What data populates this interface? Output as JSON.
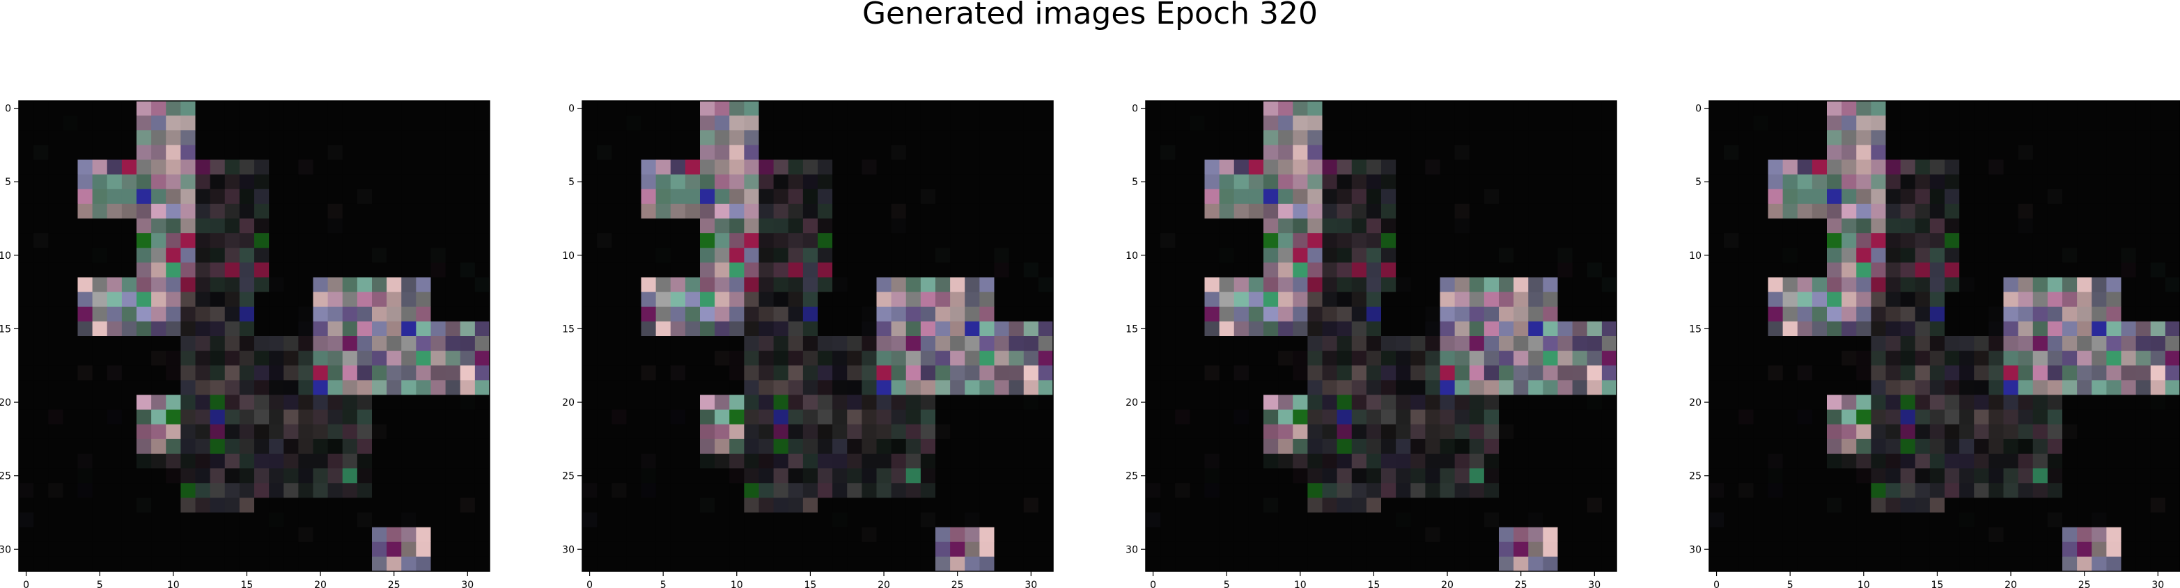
{
  "figure": {
    "title": "Generated images Epoch 320",
    "background": "#ffffff"
  },
  "chart_data": [
    {
      "type": "heatmap",
      "title": "",
      "xlabel": "",
      "ylabel": "",
      "xlim": [
        -0.5,
        31.5
      ],
      "ylim": [
        31.5,
        -0.5
      ],
      "xticks": [
        "0",
        "5",
        "10",
        "15",
        "20",
        "25",
        "30"
      ],
      "yticks": [
        "0",
        "5",
        "10",
        "15",
        "20",
        "25",
        "30"
      ],
      "grid": false
    },
    {
      "type": "heatmap",
      "title": "",
      "xlabel": "",
      "ylabel": "",
      "xlim": [
        -0.5,
        31.5
      ],
      "ylim": [
        31.5,
        -0.5
      ],
      "xticks": [
        "0",
        "5",
        "10",
        "15",
        "20",
        "25",
        "30"
      ],
      "yticks": [
        "0",
        "5",
        "10",
        "15",
        "20",
        "25",
        "30"
      ],
      "grid": false
    },
    {
      "type": "heatmap",
      "title": "",
      "xlabel": "",
      "ylabel": "",
      "xlim": [
        -0.5,
        31.5
      ],
      "ylim": [
        31.5,
        -0.5
      ],
      "xticks": [
        "0",
        "5",
        "10",
        "15",
        "20",
        "25",
        "30"
      ],
      "yticks": [
        "0",
        "5",
        "10",
        "15",
        "20",
        "25",
        "30"
      ],
      "grid": false
    },
    {
      "type": "heatmap",
      "title": "",
      "xlabel": "",
      "ylabel": "",
      "xlim": [
        -0.5,
        31.5
      ],
      "ylim": [
        31.5,
        -0.5
      ],
      "xticks": [
        "0",
        "5",
        "10",
        "15",
        "20",
        "25",
        "30"
      ],
      "yticks": [
        "0",
        "5",
        "10",
        "15",
        "20",
        "25",
        "30"
      ],
      "grid": false
    }
  ],
  "image_pattern": {
    "size": 32,
    "background_color": "#050505",
    "bright_regions": [
      {
        "rows": [
          0,
          4
        ],
        "cols": [
          8,
          11
        ]
      },
      {
        "rows": [
          4,
          7
        ],
        "cols": [
          4,
          11
        ]
      },
      {
        "rows": [
          7,
          11
        ],
        "cols": [
          8,
          11
        ]
      },
      {
        "rows": [
          12,
          15
        ],
        "cols": [
          4,
          10
        ]
      },
      {
        "rows": [
          12,
          15
        ],
        "cols": [
          20,
          27
        ]
      },
      {
        "rows": [
          15,
          19
        ],
        "cols": [
          20,
          31
        ]
      },
      {
        "rows": [
          20,
          23
        ],
        "cols": [
          8,
          10
        ]
      },
      {
        "rows": [
          29,
          31
        ],
        "cols": [
          24,
          27
        ]
      }
    ],
    "dim_regions": [
      {
        "rows": [
          4,
          12
        ],
        "cols": [
          11,
          16
        ]
      },
      {
        "rows": [
          12,
          27
        ],
        "cols": [
          11,
          15
        ]
      },
      {
        "rows": [
          19,
          26
        ],
        "cols": [
          15,
          23
        ]
      },
      {
        "rows": [
          16,
          20
        ],
        "cols": [
          14,
          20
        ]
      },
      {
        "rows": [
          20,
          24
        ],
        "cols": [
          8,
          11
        ]
      }
    ],
    "palette": [
      "#8c8c8c",
      "#6e8c80",
      "#8a6f84",
      "#5a4a78",
      "#9a8a8a",
      "#4a6a5a",
      "#a06a8a",
      "#7a7aa0",
      "#c8a8a8",
      "#5e5e70",
      "#b08aa0",
      "#6a9a8a"
    ],
    "accent_colors": [
      "#3a9a6a",
      "#2a2a9a",
      "#9a1a4a",
      "#1a6a1a",
      "#6a1a5a"
    ],
    "seed": 320
  }
}
